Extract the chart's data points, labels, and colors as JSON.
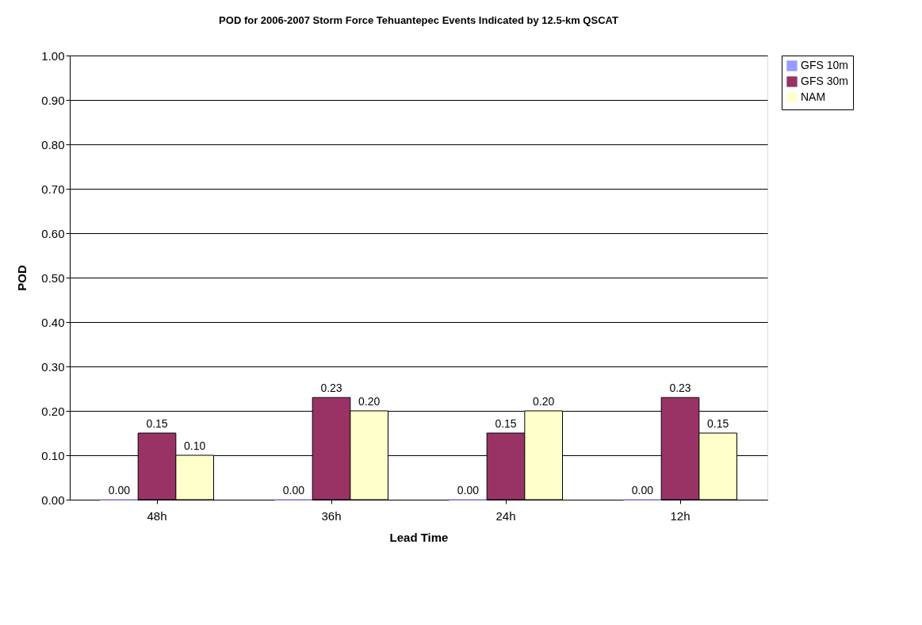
{
  "chart_data": {
    "type": "bar",
    "title": "POD for 2006-2007 Storm Force Tehuantepec Events Indicated by 12.5-km QSCAT",
    "xlabel": "Lead Time",
    "ylabel": "POD",
    "categories": [
      "48h",
      "36h",
      "24h",
      "12h"
    ],
    "series": [
      {
        "name": "GFS 10m",
        "color": "#9999ff",
        "values": [
          0.0,
          0.0,
          0.0,
          0.0
        ],
        "value_labels": [
          "0.00",
          "0.00",
          "0.00",
          "0.00"
        ]
      },
      {
        "name": "GFS 30m",
        "color": "#993366",
        "values": [
          0.15,
          0.23,
          0.15,
          0.23
        ],
        "value_labels": [
          "0.15",
          "0.23",
          "0.15",
          "0.23"
        ]
      },
      {
        "name": "NAM",
        "color": "#ffffcc",
        "values": [
          0.1,
          0.2,
          0.2,
          0.15
        ],
        "value_labels": [
          "0.10",
          "0.20",
          "0.20",
          "0.15"
        ]
      }
    ],
    "ylim": [
      0,
      1
    ],
    "yticks": [
      {
        "value": 0,
        "label": "0.00"
      },
      {
        "value": 0.1,
        "label": "0.10"
      },
      {
        "value": 0.2,
        "label": "0.20"
      },
      {
        "value": 0.3,
        "label": "0.30"
      },
      {
        "value": 0.4,
        "label": "0.40"
      },
      {
        "value": 0.5,
        "label": "0.50"
      },
      {
        "value": 0.6,
        "label": "0.60"
      },
      {
        "value": 0.7,
        "label": "0.70"
      },
      {
        "value": 0.8,
        "label": "0.80"
      },
      {
        "value": 0.9,
        "label": "0.90"
      },
      {
        "value": 1,
        "label": "1.00"
      }
    ],
    "grid": "y",
    "legend": "right"
  }
}
